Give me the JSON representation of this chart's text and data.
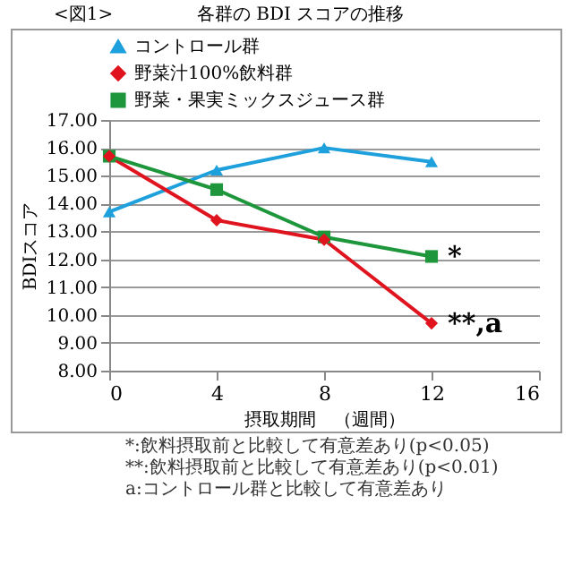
{
  "chart_data": {
    "type": "line",
    "title": "各群の BDI スコアの推移",
    "xlabel": "摂取期間　（週間）",
    "ylabel": "BDIスコア",
    "x": [
      0,
      4,
      8,
      12
    ],
    "series": [
      {
        "name": "コントロール群",
        "color": "#1ea0dc",
        "marker": "triangle",
        "values": [
          13.7,
          15.2,
          16.0,
          15.5
        ]
      },
      {
        "name": "野菜汁100%飲料群",
        "color": "#e0141e",
        "marker": "diamond",
        "values": [
          15.7,
          13.4,
          12.7,
          9.7
        ]
      },
      {
        "name": "野菜・果実ミックスジュース群",
        "color": "#1e963c",
        "marker": "square",
        "values": [
          15.7,
          14.5,
          12.8,
          12.1
        ]
      }
    ],
    "xlim": [
      0,
      16
    ],
    "xticks": [
      0,
      4,
      8,
      12,
      16
    ],
    "ylim": [
      8,
      17
    ],
    "yticks": [
      {
        "value": 8,
        "label": "8.00"
      },
      {
        "value": 9,
        "label": "9.00"
      },
      {
        "value": 10,
        "label": "10.00"
      },
      {
        "value": 11,
        "label": "11.00"
      },
      {
        "value": 12,
        "label": "12.00"
      },
      {
        "value": 13,
        "label": "13.00"
      },
      {
        "value": 14,
        "label": "14.00"
      },
      {
        "value": 15,
        "label": "15.00"
      },
      {
        "value": 16,
        "label": "16.00"
      },
      {
        "value": 17,
        "label": "17.00"
      }
    ],
    "grid": "y",
    "legend": "top",
    "annotations": [
      "<図1>",
      {
        "text": "*",
        "x": 12,
        "y": 12.1
      },
      {
        "text": "**,a",
        "x": 12,
        "y": 9.7
      },
      "*:飲料摂取前と比較して有意差あり(p<0.05)",
      "**:飲料摂取前と比較して有意差あり(p<0.01)",
      "a:コントロール群と比較して有意差あり"
    ]
  }
}
